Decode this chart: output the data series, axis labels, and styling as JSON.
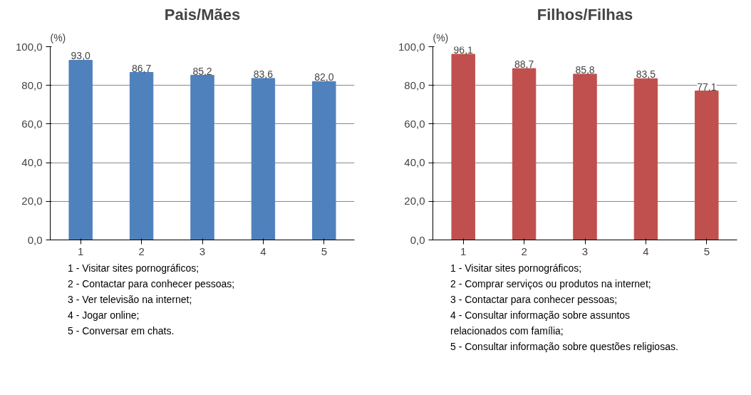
{
  "chart_data": [
    {
      "type": "bar",
      "title": "Pais/Mães",
      "ylabel": "(%)",
      "categories": [
        "1",
        "2",
        "3",
        "4",
        "5"
      ],
      "values": [
        93.0,
        86.7,
        85.2,
        83.6,
        82.0
      ],
      "color": "#4f81bd",
      "value_labels": [
        "93,0",
        "86,7",
        "85,2",
        "83,6",
        "82,0"
      ],
      "ylim": [
        0,
        100
      ],
      "yticks": [
        {
          "value": 0,
          "label": "0,0"
        },
        {
          "value": 20,
          "label": "20,0"
        },
        {
          "value": 40,
          "label": "40,0"
        },
        {
          "value": 60,
          "label": "60,0"
        },
        {
          "value": 80,
          "label": "80,0"
        },
        {
          "value": 100,
          "label": "100,0"
        }
      ],
      "grid": "y",
      "annotations": [
        "1 - Visitar sites pornográficos;",
        "2 - Contactar para conhecer pessoas;",
        "3 - Ver televisão na internet;",
        "4 - Jogar online;",
        "5 - Conversar em chats."
      ]
    },
    {
      "type": "bar",
      "title": "Filhos/Filhas",
      "ylabel": "(%)",
      "categories": [
        "1",
        "2",
        "3",
        "4",
        "5"
      ],
      "values": [
        96.1,
        88.7,
        85.8,
        83.5,
        77.1
      ],
      "color": "#c0504d",
      "value_labels": [
        "96,1",
        "88,7",
        "85,8",
        "83,5",
        "77,1"
      ],
      "ylim": [
        0,
        100
      ],
      "yticks": [
        {
          "value": 0,
          "label": "0,0"
        },
        {
          "value": 20,
          "label": "20,0"
        },
        {
          "value": 40,
          "label": "40,0"
        },
        {
          "value": 60,
          "label": "60,0"
        },
        {
          "value": 80,
          "label": "80,0"
        },
        {
          "value": 100,
          "label": "100,0"
        }
      ],
      "grid": "y",
      "annotations": [
        "1 - Visitar sites pornográficos;",
        "2 - Comprar serviços ou produtos na internet;",
        "3 - Contactar para conhecer pessoas;",
        "4 - Consultar informação sobre assuntos relacionados com família;",
        "5 - Consultar informação sobre questões religiosas."
      ]
    }
  ]
}
